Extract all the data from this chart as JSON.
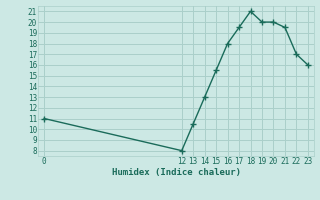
{
  "x": [
    0,
    12,
    13,
    14,
    15,
    16,
    17,
    18,
    19,
    20,
    21,
    22,
    23
  ],
  "y": [
    11,
    8,
    10.5,
    13,
    15.5,
    18,
    19.5,
    21,
    20,
    20,
    19.5,
    17,
    16
  ],
  "xlabel": "Humidex (Indice chaleur)",
  "bg_color": "#cce8e4",
  "grid_color": "#aacfca",
  "line_color": "#1a6b5a",
  "xmin": -0.5,
  "xmax": 23.5,
  "ymin": 7.5,
  "ymax": 21.5,
  "yticks": [
    8,
    9,
    10,
    11,
    12,
    13,
    14,
    15,
    16,
    17,
    18,
    19,
    20,
    21
  ],
  "xticks": [
    0,
    12,
    13,
    14,
    15,
    16,
    17,
    18,
    19,
    20,
    21,
    22,
    23
  ]
}
